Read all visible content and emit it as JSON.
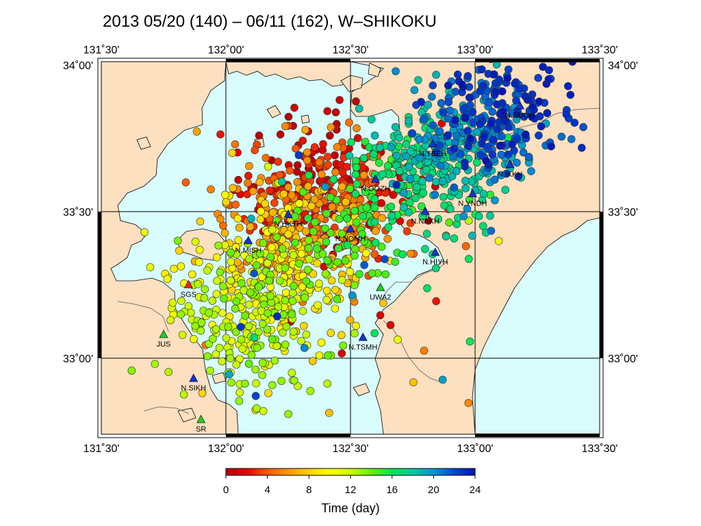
{
  "title": "2013 05/20 (140) – 06/11 (162), W–SHIKOKU",
  "region": "W-SHIKOKU",
  "period": {
    "start": "2013 05/20",
    "start_doy": 140,
    "end": "06/11",
    "end_doy": 162
  },
  "map": {
    "lon_range": [
      131.5,
      133.5
    ],
    "lat_range": [
      32.75,
      34.0
    ],
    "top_ticks": [
      "131˚30'",
      "132˚00'",
      "132˚30'",
      "133˚00'",
      "133˚30'"
    ],
    "bottom_ticks": [
      "131˚30'",
      "132˚00'",
      "132˚30'",
      "133˚00'",
      "133˚30'"
    ],
    "left_ticks": [
      "34˚00'",
      "33˚30'",
      "33˚00'"
    ],
    "right_ticks": [
      "34˚00'",
      "33˚30'",
      "33˚00'"
    ],
    "land_color": "#fde0c0",
    "sea_color": "#d9fcfd"
  },
  "stations": [
    {
      "name": "N.SUOH",
      "lon": 133.18,
      "lat": 33.85,
      "color": "#1432d2"
    },
    {
      "name": "N.TBEH",
      "lon": 132.83,
      "lat": 33.72,
      "color": "#1432d2"
    },
    {
      "name": "N.IKKH",
      "lon": 133.14,
      "lat": 33.65,
      "color": "#1432d2"
    },
    {
      "name": "N.OOZH",
      "lon": 132.6,
      "lat": 33.6,
      "color": "#1432d2"
    },
    {
      "name": "N.YNDH",
      "lon": 132.99,
      "lat": 33.55,
      "color": "#1432d2"
    },
    {
      "name": "N.NAKH",
      "lon": 132.8,
      "lat": 33.49,
      "color": "#1432d2"
    },
    {
      "name": "N.HKTH",
      "lon": 132.25,
      "lat": 33.48,
      "color": "#1432d2"
    },
    {
      "name": "N.NOMH",
      "lon": 132.5,
      "lat": 33.43,
      "color": "#1432d2"
    },
    {
      "name": "N.MISH",
      "lon": 132.09,
      "lat": 33.39,
      "color": "#1432d2"
    },
    {
      "name": "N.HIYH",
      "lon": 132.84,
      "lat": 33.35,
      "color": "#1432d2"
    },
    {
      "name": "UWA2",
      "lon": 132.62,
      "lat": 33.23,
      "color": "#28c828"
    },
    {
      "name": "SGS",
      "lon": 131.85,
      "lat": 33.24,
      "color": "#e61e1e"
    },
    {
      "name": "JUS",
      "lon": 131.75,
      "lat": 33.07,
      "color": "#28c828"
    },
    {
      "name": "N.TSMH",
      "lon": 132.55,
      "lat": 33.06,
      "color": "#1432d2"
    },
    {
      "name": "N.SIKH",
      "lon": 131.87,
      "lat": 32.92,
      "color": "#1432d2"
    },
    {
      "name": "SR",
      "lon": 131.9,
      "lat": 32.78,
      "color": "#28c828"
    }
  ],
  "colorbar": {
    "label": "Time (day)",
    "min": 0,
    "max": 24,
    "tick_labels": [
      "0",
      "4",
      "8",
      "12",
      "16",
      "20",
      "24"
    ],
    "colors": [
      "#b40000",
      "#e60000",
      "#ff5a00",
      "#ff9600",
      "#ffd200",
      "#ffff00",
      "#c8ff00",
      "#64f000",
      "#00e65a",
      "#00c8a0",
      "#0096d2",
      "#0046d2",
      "#0014b4"
    ]
  }
}
